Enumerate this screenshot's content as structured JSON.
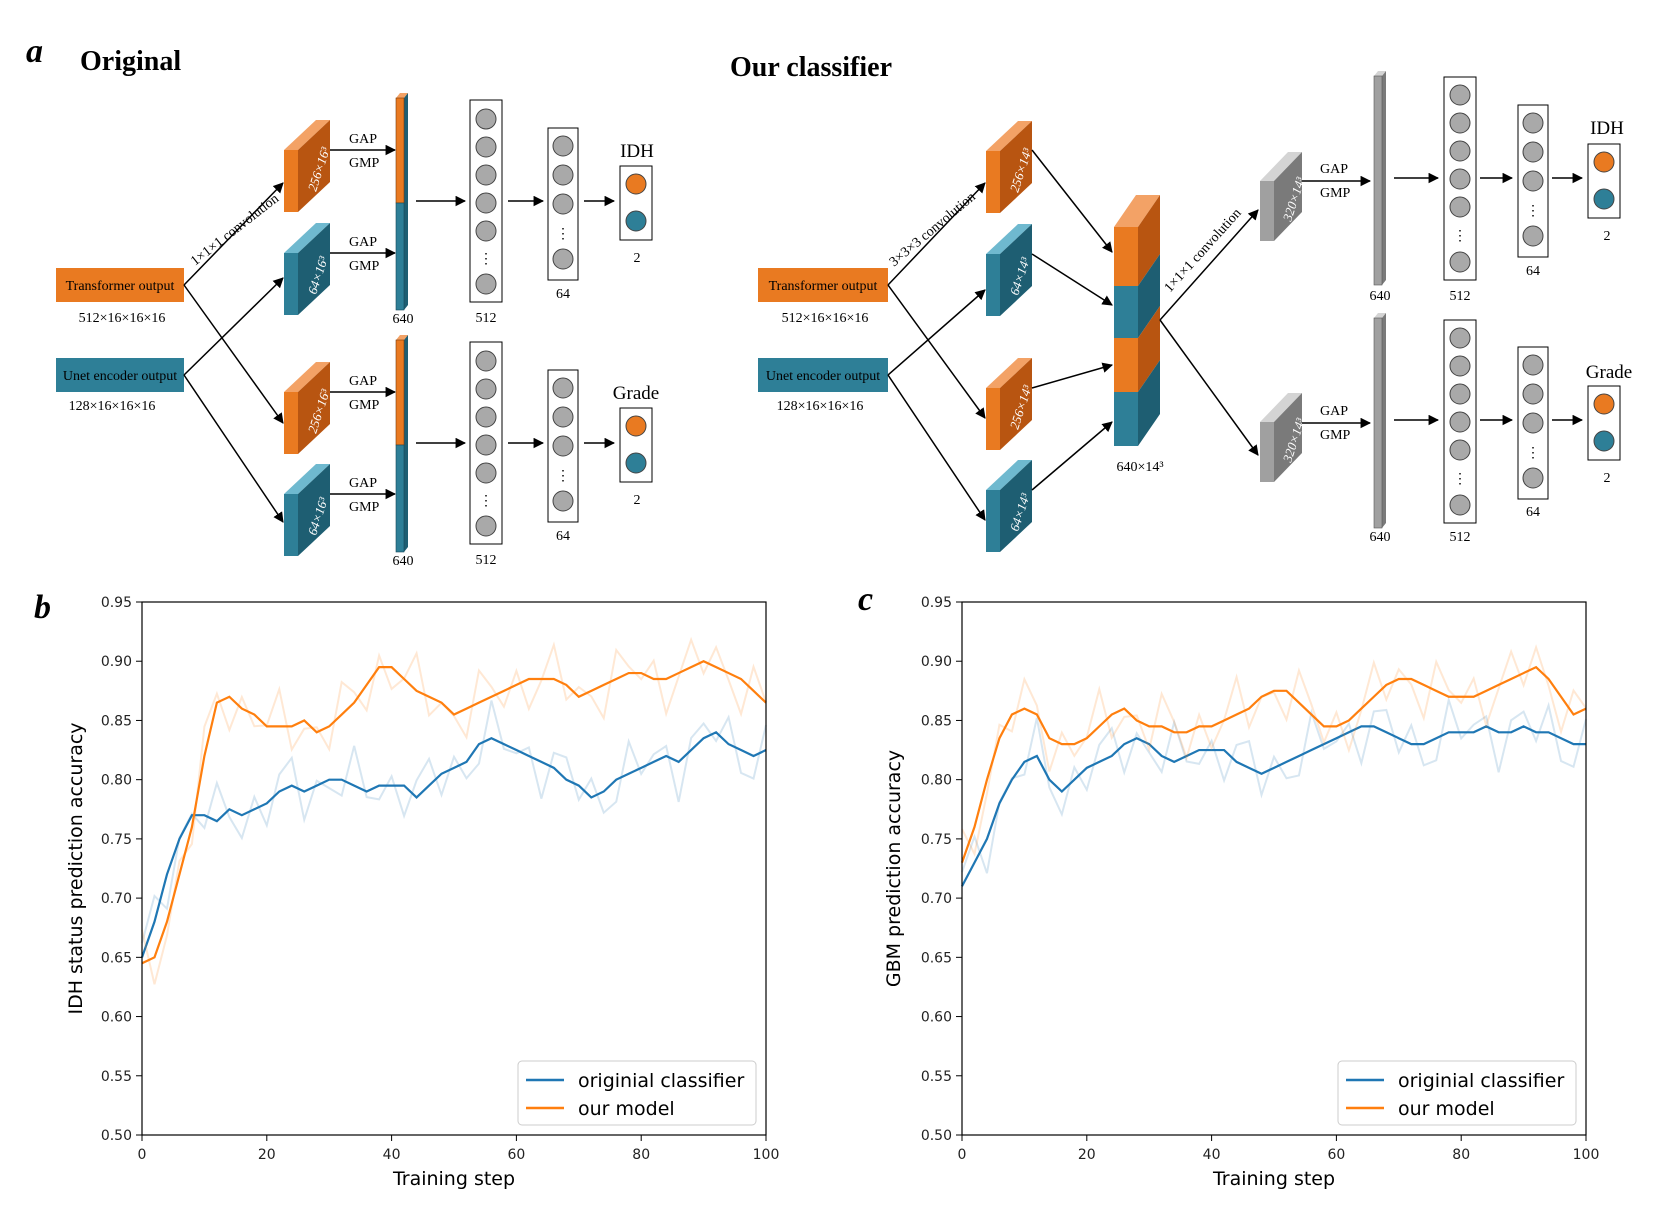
{
  "panel_a": {
    "letter": "a",
    "original": {
      "title": "Original",
      "transformer_label": "Transformer output",
      "transformer_dims": "512×16×16×16",
      "unet_label": "Unet encoder output",
      "unet_dims": "128×16×16×16",
      "conv_label": "1×1×1 convolution",
      "block_orange": "256×16³",
      "block_teal": "64×16³",
      "gap": "GAP",
      "gmp": "GMP",
      "concat_dim": "640",
      "fc1_dim": "512",
      "fc2_dim": "64",
      "out_dim": "2",
      "head_top": "IDH",
      "head_bottom": "Grade"
    },
    "ours": {
      "title": "Our classifier",
      "transformer_label": "Transformer output",
      "transformer_dims": "512×16×16×16",
      "unet_label": "Unet encoder output",
      "unet_dims": "128×16×16×16",
      "conv3_label": "3×3×3 convolution",
      "conv1_label": "1×1×1 convolution",
      "block_orange": "256×14³",
      "block_teal": "64×14³",
      "concat_label": "640×14³",
      "grey_block": "320×14³",
      "gap": "GAP",
      "gmp": "GMP",
      "concat_dim": "640",
      "fc1_dim": "512",
      "fc2_dim": "64",
      "out_dim": "2",
      "head_top": "IDH",
      "head_bottom": "Grade"
    }
  },
  "chart_data": [
    {
      "type": "line",
      "letter": "b",
      "xlabel": "Training step",
      "ylabel": "IDH status prediction accuracy",
      "xlim": [
        0,
        100
      ],
      "ylim": [
        0.5,
        0.95
      ],
      "xticks": [
        0,
        20,
        40,
        60,
        80,
        100
      ],
      "yticks": [
        0.5,
        0.55,
        0.6,
        0.65,
        0.7,
        0.75,
        0.8,
        0.85,
        0.9,
        0.95
      ],
      "legend_position": "lower-right",
      "series": [
        {
          "name": "originial classifier",
          "color": "#1f77b4",
          "x": [
            0,
            2,
            4,
            6,
            8,
            10,
            12,
            14,
            16,
            18,
            20,
            22,
            24,
            26,
            28,
            30,
            32,
            34,
            36,
            38,
            40,
            42,
            44,
            46,
            48,
            50,
            52,
            54,
            56,
            58,
            60,
            62,
            64,
            66,
            68,
            70,
            72,
            74,
            76,
            78,
            80,
            82,
            84,
            86,
            88,
            90,
            92,
            94,
            96,
            98,
            100
          ],
          "values": [
            0.65,
            0.68,
            0.72,
            0.75,
            0.77,
            0.77,
            0.765,
            0.775,
            0.77,
            0.775,
            0.78,
            0.79,
            0.795,
            0.79,
            0.795,
            0.8,
            0.8,
            0.795,
            0.79,
            0.795,
            0.795,
            0.795,
            0.785,
            0.795,
            0.805,
            0.81,
            0.815,
            0.83,
            0.835,
            0.83,
            0.825,
            0.82,
            0.815,
            0.81,
            0.8,
            0.795,
            0.785,
            0.79,
            0.8,
            0.805,
            0.81,
            0.815,
            0.82,
            0.815,
            0.825,
            0.835,
            0.84,
            0.83,
            0.825,
            0.82,
            0.825
          ]
        },
        {
          "name": "our model",
          "color": "#ff7f0e",
          "x": [
            0,
            2,
            4,
            6,
            8,
            10,
            12,
            14,
            16,
            18,
            20,
            22,
            24,
            26,
            28,
            30,
            32,
            34,
            36,
            38,
            40,
            42,
            44,
            46,
            48,
            50,
            52,
            54,
            56,
            58,
            60,
            62,
            64,
            66,
            68,
            70,
            72,
            74,
            76,
            78,
            80,
            82,
            84,
            86,
            88,
            90,
            92,
            94,
            96,
            98,
            100
          ],
          "values": [
            0.645,
            0.65,
            0.68,
            0.72,
            0.76,
            0.82,
            0.865,
            0.87,
            0.86,
            0.855,
            0.845,
            0.845,
            0.845,
            0.85,
            0.84,
            0.845,
            0.855,
            0.865,
            0.88,
            0.895,
            0.895,
            0.885,
            0.875,
            0.87,
            0.865,
            0.855,
            0.86,
            0.865,
            0.87,
            0.875,
            0.88,
            0.885,
            0.885,
            0.885,
            0.88,
            0.87,
            0.875,
            0.88,
            0.885,
            0.89,
            0.89,
            0.885,
            0.885,
            0.89,
            0.895,
            0.9,
            0.895,
            0.89,
            0.885,
            0.875,
            0.865
          ]
        }
      ]
    },
    {
      "type": "line",
      "letter": "c",
      "xlabel": "Training step",
      "ylabel": "GBM prediction accuracy",
      "xlim": [
        0,
        100
      ],
      "ylim": [
        0.5,
        0.95
      ],
      "xticks": [
        0,
        20,
        40,
        60,
        80,
        100
      ],
      "yticks": [
        0.5,
        0.55,
        0.6,
        0.65,
        0.7,
        0.75,
        0.8,
        0.85,
        0.9,
        0.95
      ],
      "legend_position": "lower-right",
      "series": [
        {
          "name": "originial classifier",
          "color": "#1f77b4",
          "x": [
            0,
            2,
            4,
            6,
            8,
            10,
            12,
            14,
            16,
            18,
            20,
            22,
            24,
            26,
            28,
            30,
            32,
            34,
            36,
            38,
            40,
            42,
            44,
            46,
            48,
            50,
            52,
            54,
            56,
            58,
            60,
            62,
            64,
            66,
            68,
            70,
            72,
            74,
            76,
            78,
            80,
            82,
            84,
            86,
            88,
            90,
            92,
            94,
            96,
            98,
            100
          ],
          "values": [
            0.71,
            0.73,
            0.75,
            0.78,
            0.8,
            0.815,
            0.82,
            0.8,
            0.79,
            0.8,
            0.81,
            0.815,
            0.82,
            0.83,
            0.835,
            0.83,
            0.82,
            0.815,
            0.82,
            0.825,
            0.825,
            0.825,
            0.815,
            0.81,
            0.805,
            0.81,
            0.815,
            0.82,
            0.825,
            0.83,
            0.835,
            0.84,
            0.845,
            0.845,
            0.84,
            0.835,
            0.83,
            0.83,
            0.835,
            0.84,
            0.84,
            0.84,
            0.845,
            0.84,
            0.84,
            0.845,
            0.84,
            0.84,
            0.835,
            0.83,
            0.83
          ]
        },
        {
          "name": "our model",
          "color": "#ff7f0e",
          "x": [
            0,
            2,
            4,
            6,
            8,
            10,
            12,
            14,
            16,
            18,
            20,
            22,
            24,
            26,
            28,
            30,
            32,
            34,
            36,
            38,
            40,
            42,
            44,
            46,
            48,
            50,
            52,
            54,
            56,
            58,
            60,
            62,
            64,
            66,
            68,
            70,
            72,
            74,
            76,
            78,
            80,
            82,
            84,
            86,
            88,
            90,
            92,
            94,
            96,
            98,
            100
          ],
          "values": [
            0.73,
            0.76,
            0.8,
            0.835,
            0.855,
            0.86,
            0.855,
            0.835,
            0.83,
            0.83,
            0.835,
            0.845,
            0.855,
            0.86,
            0.85,
            0.845,
            0.845,
            0.84,
            0.84,
            0.845,
            0.845,
            0.85,
            0.855,
            0.86,
            0.87,
            0.875,
            0.875,
            0.865,
            0.855,
            0.845,
            0.845,
            0.85,
            0.86,
            0.87,
            0.88,
            0.885,
            0.885,
            0.88,
            0.875,
            0.87,
            0.87,
            0.87,
            0.875,
            0.88,
            0.885,
            0.89,
            0.895,
            0.885,
            0.87,
            0.855,
            0.86
          ]
        }
      ]
    }
  ]
}
